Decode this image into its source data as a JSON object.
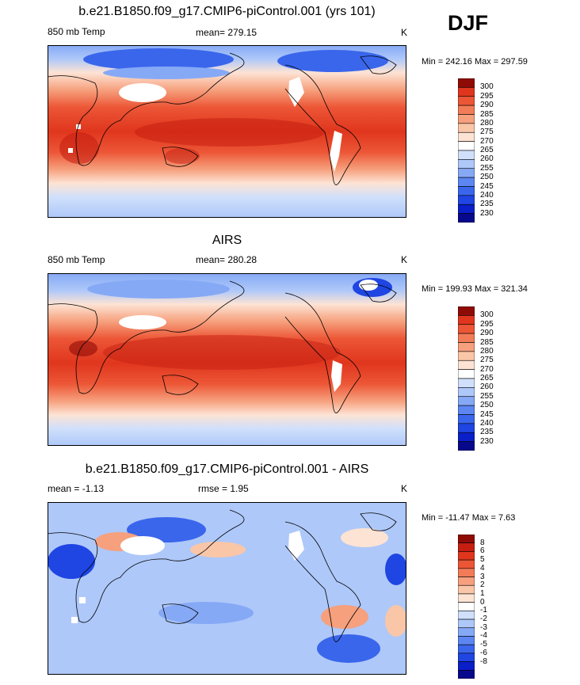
{
  "season": "DJF",
  "palette_diverging": [
    "#08088c",
    "#0a1fc8",
    "#1f45e3",
    "#3a66ec",
    "#5c86f2",
    "#86a9f6",
    "#aec8f9",
    "#d0e0fb",
    "#ffffff",
    "#fde3d4",
    "#fac6a8",
    "#f6a07d",
    "#f27c57",
    "#ec5636",
    "#e0361e",
    "#c61f11",
    "#8f0b06"
  ],
  "palette_field": [
    "#08088c",
    "#0a1fc8",
    "#1f45e3",
    "#3a66ec",
    "#5c86f2",
    "#86a9f6",
    "#aec8f9",
    "#d0e0fb",
    "#ffffff",
    "#fde3d4",
    "#fac6a8",
    "#f6a07d",
    "#f27c57",
    "#ec5636",
    "#e0361e",
    "#8f0b06"
  ],
  "chart_data": [
    {
      "type": "heatmap",
      "title": "b.e21.B1850.f09_g17.CMIP6-piControl.001 (yrs 101)",
      "left_label": "850 mb Temp",
      "center_label": "mean= 279.15",
      "units": "K",
      "minmax": "Min = 242.16 Max = 297.59",
      "colorbar_levels": [
        "300",
        "295",
        "290",
        "285",
        "280",
        "275",
        "270",
        "265",
        "260",
        "255",
        "250",
        "245",
        "240",
        "235",
        "230"
      ]
    },
    {
      "type": "heatmap",
      "title": "AIRS",
      "left_label": "850 mb Temp",
      "center_label": "mean= 280.28",
      "units": "K",
      "minmax": "Min = 199.93 Max = 321.34",
      "colorbar_levels": [
        "300",
        "295",
        "290",
        "285",
        "280",
        "275",
        "270",
        "265",
        "260",
        "255",
        "250",
        "245",
        "240",
        "235",
        "230"
      ]
    },
    {
      "type": "heatmap",
      "title": "b.e21.B1850.f09_g17.CMIP6-piControl.001 - AIRS",
      "left_label": "mean =  -1.13",
      "center_label": "rmse =   1.95",
      "units": "K",
      "minmax": "Min = -11.47 Max =   7.63",
      "colorbar_levels": [
        "8",
        "6",
        "5",
        "4",
        "3",
        "2",
        "1",
        "0",
        "-1",
        "-2",
        "-3",
        "-4",
        "-5",
        "-6",
        "-8"
      ]
    }
  ]
}
